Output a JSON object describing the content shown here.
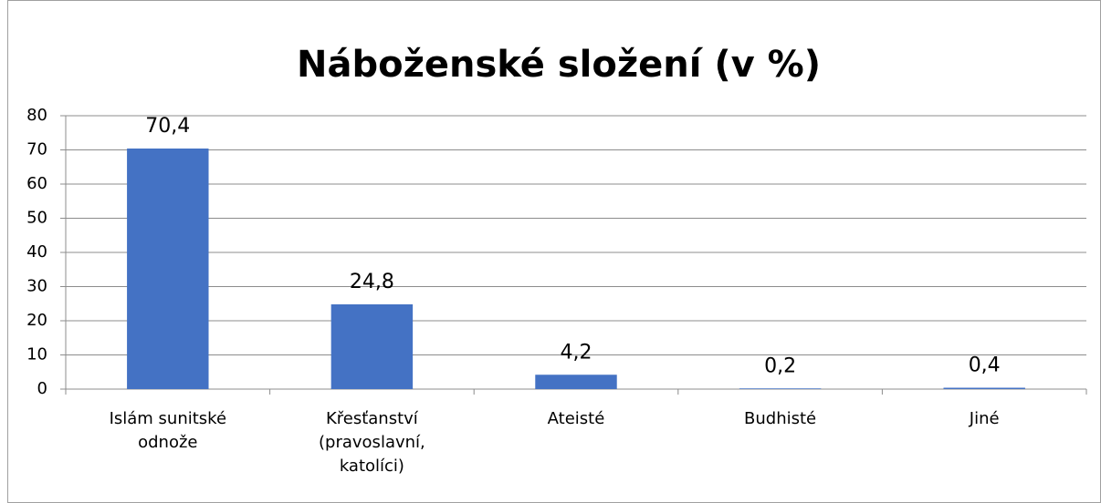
{
  "chart_data": {
    "type": "bar",
    "title": "Náboženské složení (v %)",
    "categories": [
      "Islám sunitské odnože",
      "Křesťanství (pravoslavní, katolíci)",
      "Ateisté",
      "Budhisté",
      "Jiné"
    ],
    "values": [
      70.4,
      24.8,
      4.2,
      0.2,
      0.4
    ],
    "value_labels": [
      "70,4",
      "24,8",
      "4,2",
      "0,2",
      "0,4"
    ],
    "color": "#4472c4",
    "ylim": [
      0,
      80
    ],
    "yticks": [
      0,
      10,
      20,
      30,
      40,
      50,
      60,
      70,
      80
    ],
    "grid": true
  }
}
